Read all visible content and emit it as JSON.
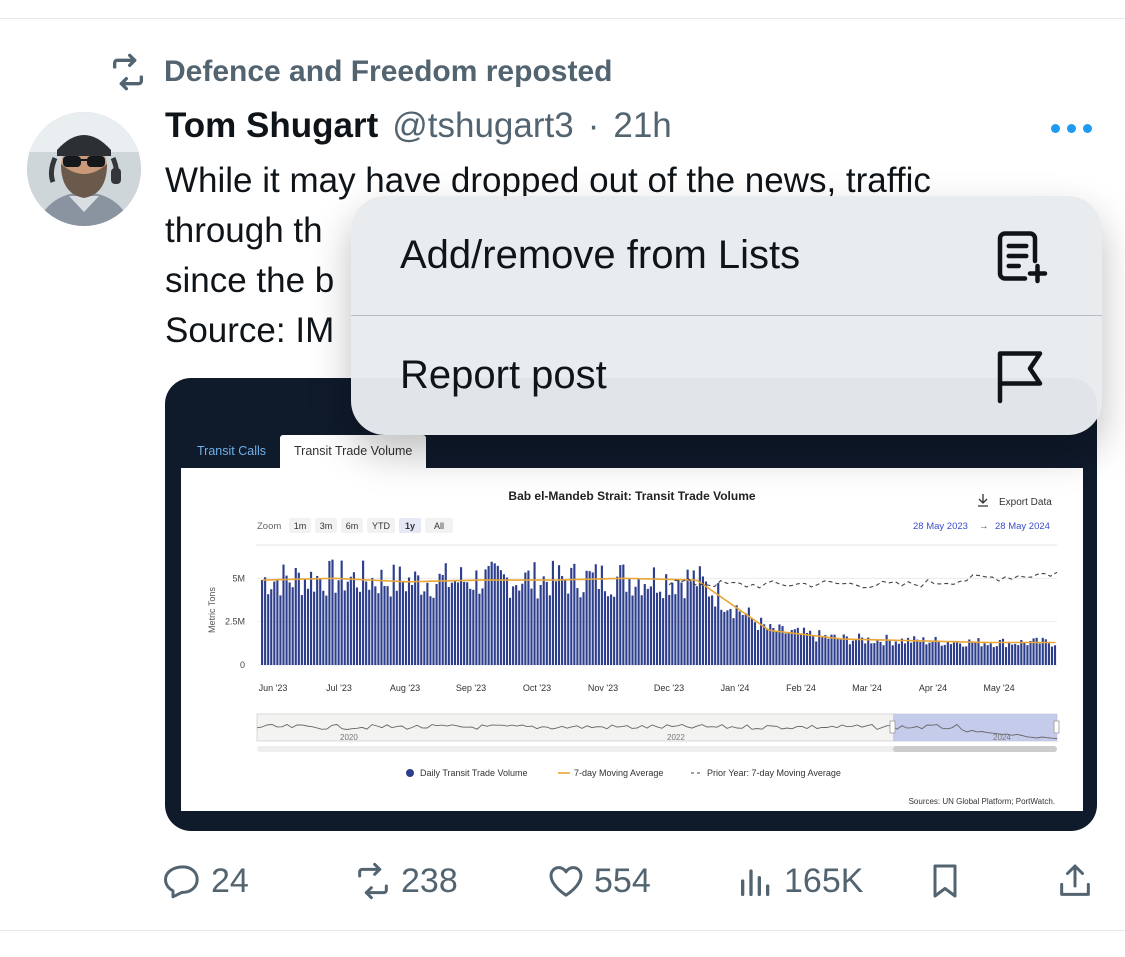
{
  "repost": {
    "label": "Defence and Freedom reposted",
    "icon": "repost-icon"
  },
  "post": {
    "author_name": "Tom Shugart",
    "handle": "@tshugart3",
    "separator": "·",
    "time": "21h",
    "text_lines": [
      "While it may have dropped out of the news, traffic",
      "through th",
      "since the b",
      "Source: IM"
    ]
  },
  "menu": {
    "items": [
      {
        "label": "Add/remove from Lists",
        "icon": "list-add-icon"
      },
      {
        "label": "Report post",
        "icon": "flag-icon"
      }
    ]
  },
  "media": {
    "tabs": [
      "Transit Calls",
      "Transit Trade Volume"
    ],
    "active_tab": 1,
    "export_label": "Export Data",
    "zoom_label": "Zoom",
    "zoom_options": [
      "1m",
      "3m",
      "6m",
      "YTD",
      "1y",
      "All"
    ],
    "zoom_selected": "1y",
    "date_from": "28 May 2023",
    "date_arrow": "→",
    "date_to": "28 May 2024",
    "navigator_labels": [
      "2020",
      "2022",
      "2024"
    ],
    "sources": "Sources: UN Global Platform; PortWatch."
  },
  "chart_data": {
    "type": "bar",
    "title": "Bab el-Mandeb Strait: Transit Trade Volume",
    "ylabel": "Metric Tons",
    "y_ticks": [
      "0",
      "2.5M",
      "5M"
    ],
    "ylim": [
      0,
      6000000
    ],
    "x_ticks": [
      "Jun '23",
      "Jul '23",
      "Aug '23",
      "Sep '23",
      "Oct '23",
      "Nov '23",
      "Dec '23",
      "Jan '24",
      "Feb '24",
      "Mar '24",
      "Apr '24",
      "May '24"
    ],
    "legend": [
      "Daily Transit Trade Volume",
      "7-day Moving Average",
      "Prior Year: 7-day Moving Average"
    ],
    "series": [
      {
        "name": "7-day Moving Average",
        "x": [
          "Jun '23",
          "Jul '23",
          "Aug '23",
          "Sep '23",
          "Oct '23",
          "Nov '23",
          "Dec '23",
          "Jan '24",
          "Feb '24",
          "Mar '24",
          "Apr '24",
          "May '24"
        ],
        "values": [
          4900000,
          5000000,
          4800000,
          4900000,
          4900000,
          5000000,
          4900000,
          2000000,
          1500000,
          1400000,
          1300000,
          1300000
        ]
      },
      {
        "name": "Prior Year: 7-day Moving Average",
        "x": [
          "Dec '23",
          "Jan '24",
          "Feb '24",
          "Mar '24",
          "Apr '24",
          "May '24"
        ],
        "values": [
          4800000,
          4600000,
          4700000,
          4600000,
          5000000,
          5300000
        ]
      }
    ],
    "colors": {
      "bars": "#2d3e8c",
      "moving_average": "#e8a637",
      "prior_year": "#444444"
    }
  },
  "actions": {
    "reply": {
      "count": "24",
      "icon": "reply-icon"
    },
    "repost": {
      "count": "238",
      "icon": "repost-icon"
    },
    "like": {
      "count": "554",
      "icon": "heart-icon"
    },
    "views": {
      "count": "165K",
      "icon": "views-icon"
    },
    "bookmark": {
      "icon": "bookmark-icon"
    },
    "share": {
      "icon": "share-icon"
    }
  }
}
